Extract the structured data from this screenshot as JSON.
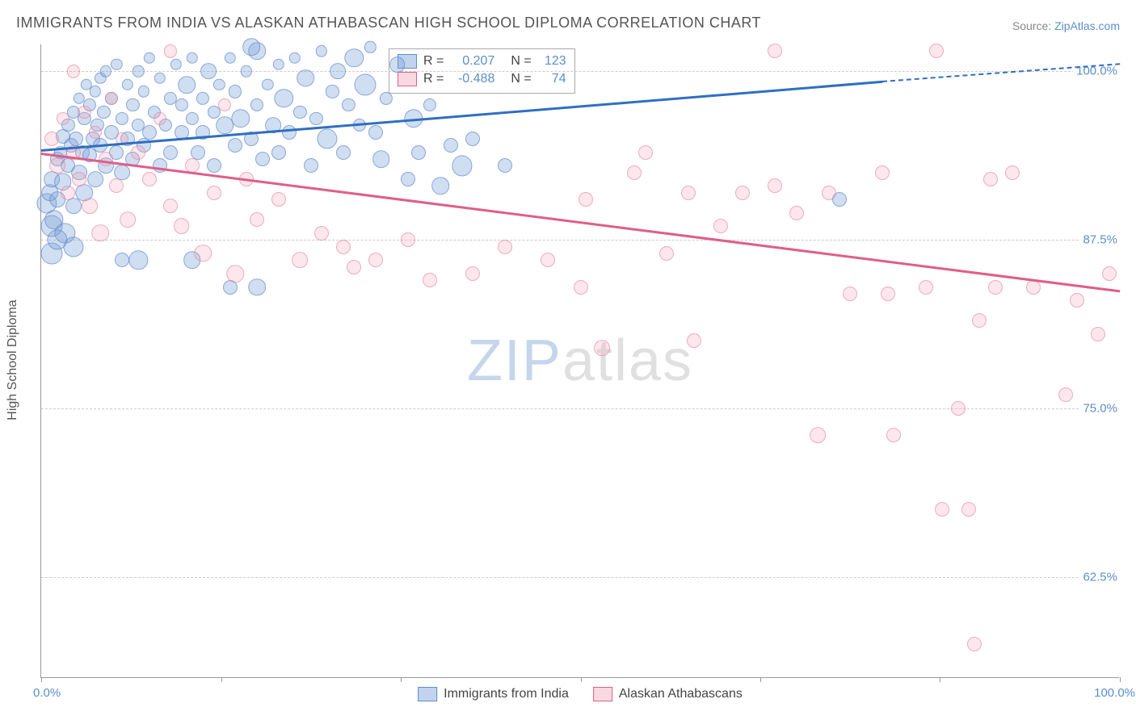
{
  "title": "IMMIGRANTS FROM INDIA VS ALASKAN ATHABASCAN HIGH SCHOOL DIPLOMA CORRELATION CHART",
  "source_prefix": "Source: ",
  "source_name": "ZipAtlas.com",
  "watermark_zip": "ZIP",
  "watermark_atlas": "atlas",
  "yaxis_title": "High School Diploma",
  "chart": {
    "type": "scatter",
    "background_color": "#ffffff",
    "grid_color": "#cccccc",
    "axis_color": "#999999",
    "tick_label_color": "#5b8fc7",
    "xlim": [
      0,
      100
    ],
    "ylim": [
      55,
      102
    ],
    "xtick_positions": [
      0,
      16.67,
      33.33,
      50,
      66.67,
      83.33,
      100
    ],
    "xtick_labels": {
      "0": "0.0%",
      "100": "100.0%"
    },
    "ytick_positions": [
      62.5,
      75.0,
      87.5,
      100.0
    ],
    "ytick_labels": [
      "62.5%",
      "75.0%",
      "87.5%",
      "100.0%"
    ],
    "marker_base_radius": 9,
    "series": [
      {
        "id": "blue",
        "name": "Immigrants from India",
        "fill_color": "rgba(120,160,215,0.35)",
        "stroke_color": "rgba(90,130,200,0.6)",
        "R": "0.207",
        "N": "123",
        "trend": {
          "x1": 0,
          "y1": 94.2,
          "x2": 78,
          "y2": 99.3,
          "color": "#2f6fc1",
          "dashed_extension_to_x": 100,
          "dashed_extension_y": 100.6
        },
        "points": [
          [
            0.5,
            90.2,
            1.4
          ],
          [
            0.8,
            91.0,
            1.2
          ],
          [
            1.0,
            88.5,
            1.5
          ],
          [
            1.0,
            92.0,
            1.1
          ],
          [
            1.2,
            89.0,
            1.3
          ],
          [
            1.5,
            93.5,
            1.0
          ],
          [
            1.5,
            90.5,
            1.1
          ],
          [
            1.8,
            94.0,
            0.9
          ],
          [
            2.0,
            91.8,
            1.2
          ],
          [
            2.0,
            95.2,
            1.0
          ],
          [
            2.2,
            88.0,
            1.4
          ],
          [
            2.5,
            93.0,
            1.0
          ],
          [
            2.5,
            96.0,
            0.9
          ],
          [
            2.8,
            94.5,
            1.0
          ],
          [
            3.0,
            90.0,
            1.1
          ],
          [
            3.0,
            97.0,
            0.9
          ],
          [
            3.2,
            95.0,
            1.0
          ],
          [
            3.5,
            92.5,
            1.1
          ],
          [
            3.5,
            98.0,
            0.8
          ],
          [
            3.8,
            94.0,
            1.0
          ],
          [
            4.0,
            96.5,
            0.9
          ],
          [
            4.0,
            91.0,
            1.2
          ],
          [
            4.2,
            99.0,
            0.8
          ],
          [
            4.5,
            93.8,
            1.0
          ],
          [
            4.5,
            97.5,
            0.9
          ],
          [
            4.8,
            95.0,
            1.0
          ],
          [
            5.0,
            98.5,
            0.8
          ],
          [
            5.0,
            92.0,
            1.1
          ],
          [
            5.2,
            96.0,
            0.9
          ],
          [
            5.5,
            94.5,
            1.0
          ],
          [
            5.5,
            99.5,
            0.8
          ],
          [
            5.8,
            97.0,
            0.9
          ],
          [
            6.0,
            93.0,
            1.1
          ],
          [
            6.0,
            100.0,
            0.8
          ],
          [
            6.5,
            95.5,
            1.0
          ],
          [
            6.5,
            98.0,
            0.9
          ],
          [
            7.0,
            94.0,
            1.0
          ],
          [
            7.0,
            100.5,
            0.8
          ],
          [
            7.5,
            96.5,
            0.9
          ],
          [
            7.5,
            92.5,
            1.1
          ],
          [
            8.0,
            99.0,
            0.8
          ],
          [
            8.0,
            95.0,
            1.0
          ],
          [
            8.5,
            97.5,
            0.9
          ],
          [
            8.5,
            93.5,
            1.0
          ],
          [
            9.0,
            100.0,
            0.8
          ],
          [
            9.0,
            96.0,
            0.9
          ],
          [
            9.5,
            94.5,
            1.0
          ],
          [
            9.5,
            98.5,
            0.8
          ],
          [
            10.0,
            95.5,
            1.0
          ],
          [
            10.0,
            101.0,
            0.8
          ],
          [
            10.5,
            97.0,
            0.9
          ],
          [
            11.0,
            93.0,
            1.0
          ],
          [
            11.0,
            99.5,
            0.8
          ],
          [
            11.5,
            96.0,
            0.9
          ],
          [
            12.0,
            98.0,
            0.9
          ],
          [
            12.0,
            94.0,
            1.0
          ],
          [
            12.5,
            100.5,
            0.8
          ],
          [
            13.0,
            95.5,
            1.0
          ],
          [
            13.0,
            97.5,
            0.9
          ],
          [
            13.5,
            99.0,
            1.2
          ],
          [
            14.0,
            96.5,
            0.9
          ],
          [
            14.0,
            101.0,
            0.8
          ],
          [
            14.5,
            94.0,
            1.0
          ],
          [
            15.0,
            98.0,
            0.9
          ],
          [
            15.0,
            95.5,
            1.0
          ],
          [
            15.5,
            100.0,
            1.1
          ],
          [
            16.0,
            97.0,
            0.9
          ],
          [
            16.0,
            93.0,
            1.0
          ],
          [
            16.5,
            99.0,
            0.8
          ],
          [
            17.0,
            96.0,
            1.2
          ],
          [
            17.5,
            101.0,
            0.8
          ],
          [
            18.0,
            94.5,
            1.0
          ],
          [
            18.0,
            98.5,
            0.9
          ],
          [
            18.5,
            96.5,
            1.3
          ],
          [
            19.0,
            100.0,
            0.8
          ],
          [
            19.5,
            95.0,
            1.0
          ],
          [
            20.0,
            97.5,
            0.9
          ],
          [
            20.0,
            101.5,
            1.2
          ],
          [
            20.5,
            93.5,
            1.0
          ],
          [
            21.0,
            99.0,
            0.8
          ],
          [
            21.5,
            96.0,
            1.1
          ],
          [
            22.0,
            100.5,
            0.8
          ],
          [
            22.0,
            94.0,
            1.0
          ],
          [
            22.5,
            98.0,
            1.3
          ],
          [
            23.0,
            95.5,
            1.0
          ],
          [
            23.5,
            101.0,
            0.8
          ],
          [
            24.0,
            97.0,
            0.9
          ],
          [
            24.5,
            99.5,
            1.2
          ],
          [
            25.0,
            93.0,
            1.0
          ],
          [
            25.5,
            96.5,
            0.9
          ],
          [
            26.0,
            101.5,
            0.8
          ],
          [
            26.5,
            95.0,
            1.4
          ],
          [
            27.0,
            98.5,
            0.9
          ],
          [
            27.5,
            100.0,
            1.1
          ],
          [
            28.0,
            94.0,
            1.0
          ],
          [
            28.5,
            97.5,
            0.9
          ],
          [
            29.0,
            101.0,
            1.3
          ],
          [
            29.5,
            96.0,
            0.9
          ],
          [
            30.0,
            99.0,
            1.5
          ],
          [
            30.5,
            101.8,
            0.8
          ],
          [
            31.0,
            95.5,
            1.0
          ],
          [
            31.5,
            93.5,
            1.2
          ],
          [
            32.0,
            98.0,
            0.9
          ],
          [
            33.0,
            100.5,
            1.1
          ],
          [
            34.0,
            92.0,
            1.0
          ],
          [
            34.5,
            96.5,
            1.3
          ],
          [
            35.0,
            94.0,
            1.0
          ],
          [
            36.0,
            97.5,
            0.9
          ],
          [
            37.0,
            91.5,
            1.2
          ],
          [
            38.0,
            94.5,
            1.0
          ],
          [
            39.0,
            93.0,
            1.4
          ],
          [
            40.0,
            95.0,
            1.0
          ],
          [
            43.0,
            93.0,
            1.0
          ],
          [
            3.0,
            87.0,
            1.4
          ],
          [
            1.0,
            86.5,
            1.5
          ],
          [
            1.5,
            87.5,
            1.4
          ],
          [
            9.0,
            86.0,
            1.3
          ],
          [
            14.0,
            86.0,
            1.2
          ],
          [
            7.5,
            86.0,
            1.0
          ],
          [
            19.5,
            101.8,
            1.2
          ],
          [
            20.0,
            84.0,
            1.2
          ],
          [
            17.5,
            84.0,
            1.0
          ],
          [
            74.0,
            90.5,
            1.0
          ]
        ]
      },
      {
        "id": "pink",
        "name": "Alaskan Athabascans",
        "fill_color": "rgba(240,160,180,0.25)",
        "stroke_color": "rgba(230,120,155,0.55)",
        "R": "-0.488",
        "N": "74",
        "trend": {
          "x1": 0,
          "y1": 94.0,
          "x2": 100,
          "y2": 83.8,
          "color": "#e05d8a"
        },
        "points": [
          [
            1.0,
            95.0,
            1.0
          ],
          [
            1.5,
            93.0,
            1.1
          ],
          [
            2.0,
            96.5,
            0.9
          ],
          [
            2.5,
            91.0,
            1.0
          ],
          [
            3.0,
            94.0,
            1.0
          ],
          [
            3.0,
            100.0,
            0.9
          ],
          [
            3.5,
            92.0,
            1.0
          ],
          [
            4.0,
            97.0,
            0.9
          ],
          [
            4.5,
            90.0,
            1.1
          ],
          [
            5.0,
            95.5,
            0.9
          ],
          [
            5.5,
            88.0,
            1.2
          ],
          [
            6.0,
            93.5,
            1.0
          ],
          [
            6.5,
            98.0,
            0.9
          ],
          [
            7.0,
            91.5,
            1.0
          ],
          [
            7.5,
            95.0,
            0.9
          ],
          [
            8.0,
            89.0,
            1.1
          ],
          [
            9.0,
            94.0,
            1.0
          ],
          [
            10.0,
            92.0,
            1.0
          ],
          [
            11.0,
            96.5,
            0.9
          ],
          [
            12.0,
            90.0,
            1.0
          ],
          [
            12.0,
            101.5,
            0.9
          ],
          [
            13.0,
            88.5,
            1.1
          ],
          [
            14.0,
            93.0,
            1.0
          ],
          [
            15.0,
            86.5,
            1.2
          ],
          [
            16.0,
            91.0,
            1.0
          ],
          [
            17.0,
            97.5,
            0.9
          ],
          [
            18.0,
            85.0,
            1.2
          ],
          [
            19.0,
            92.0,
            1.0
          ],
          [
            20.0,
            89.0,
            1.0
          ],
          [
            22.0,
            90.5,
            1.0
          ],
          [
            24.0,
            86.0,
            1.1
          ],
          [
            26.0,
            88.0,
            1.0
          ],
          [
            28.0,
            87.0,
            1.0
          ],
          [
            29.0,
            85.5,
            1.0
          ],
          [
            31.0,
            86.0,
            1.0
          ],
          [
            34.0,
            87.5,
            1.0
          ],
          [
            36.0,
            84.5,
            1.0
          ],
          [
            40.0,
            85.0,
            1.0
          ],
          [
            43.0,
            87.0,
            1.0
          ],
          [
            47.0,
            86.0,
            1.0
          ],
          [
            50.0,
            84.0,
            1.0
          ],
          [
            50.5,
            90.5,
            1.0
          ],
          [
            52.0,
            79.5,
            1.1
          ],
          [
            55.0,
            92.5,
            1.0
          ],
          [
            56.0,
            94.0,
            1.0
          ],
          [
            58.0,
            86.5,
            1.0
          ],
          [
            60.0,
            91.0,
            1.0
          ],
          [
            60.5,
            80.0,
            1.0
          ],
          [
            63.0,
            88.5,
            1.0
          ],
          [
            65.0,
            91.0,
            1.0
          ],
          [
            68.0,
            101.5,
            1.0
          ],
          [
            68.0,
            91.5,
            1.0
          ],
          [
            70.0,
            89.5,
            1.0
          ],
          [
            72.0,
            73.0,
            1.1
          ],
          [
            73.0,
            91.0,
            1.0
          ],
          [
            75.0,
            83.5,
            1.0
          ],
          [
            78.0,
            92.5,
            1.0
          ],
          [
            78.5,
            83.5,
            1.0
          ],
          [
            79.0,
            73.0,
            1.0
          ],
          [
            82.0,
            84.0,
            1.0
          ],
          [
            83.0,
            101.5,
            1.0
          ],
          [
            83.5,
            67.5,
            1.0
          ],
          [
            85.0,
            75.0,
            1.0
          ],
          [
            86.0,
            67.5,
            1.0
          ],
          [
            87.0,
            81.5,
            1.0
          ],
          [
            88.0,
            92.0,
            1.0
          ],
          [
            88.5,
            84.0,
            1.0
          ],
          [
            90.0,
            92.5,
            1.0
          ],
          [
            92.0,
            84.0,
            1.0
          ],
          [
            95.0,
            76.0,
            1.0
          ],
          [
            96.0,
            83.0,
            1.0
          ],
          [
            98.0,
            80.5,
            1.0
          ],
          [
            86.5,
            57.5,
            1.0
          ],
          [
            99.0,
            85.0,
            1.0
          ]
        ]
      }
    ]
  },
  "legend_top": {
    "r_label": "R =",
    "n_label": "N ="
  },
  "legend_bottom": {
    "series1_label": "Immigrants from India",
    "series2_label": "Alaskan Athabascans"
  }
}
